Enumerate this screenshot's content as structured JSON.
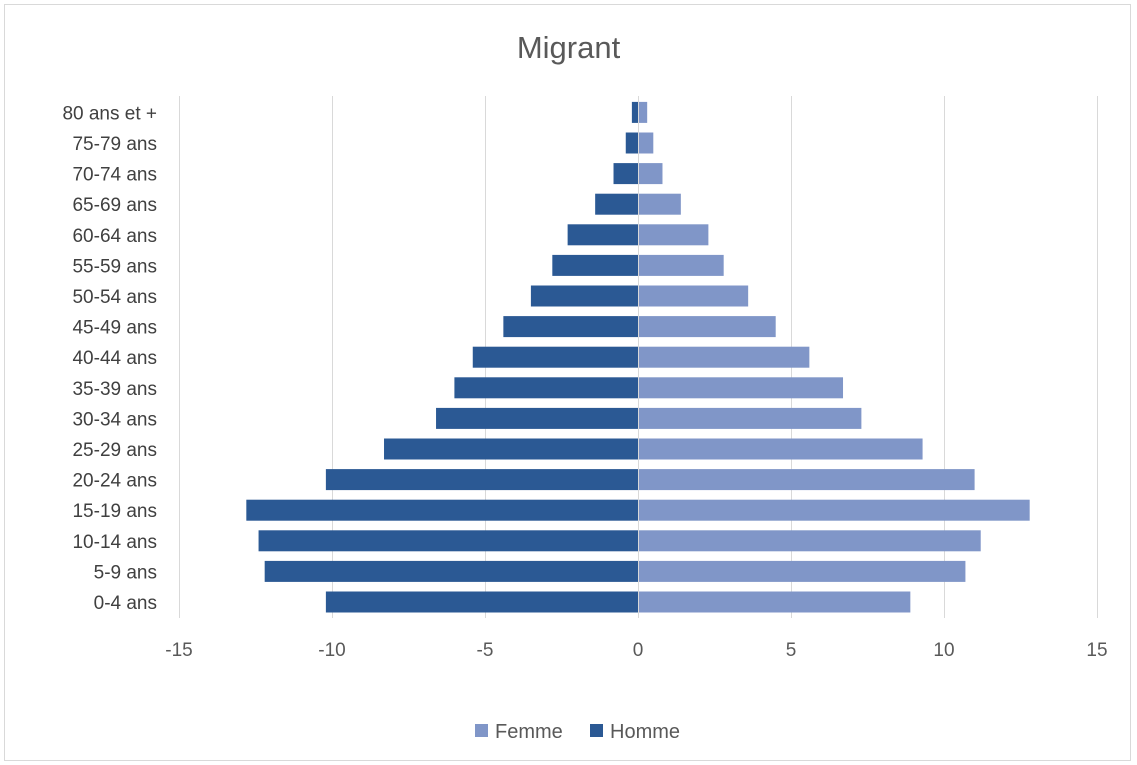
{
  "chart_data": {
    "type": "bar",
    "orientation": "horizontal",
    "title": "Migrant",
    "categories": [
      "0-4 ans",
      "5-9 ans",
      "10-14 ans",
      "15-19 ans",
      "20-24 ans",
      "25-29 ans",
      "30-34 ans",
      "35-39 ans",
      "40-44 ans",
      "45-49 ans",
      "50-54 ans",
      "55-59 ans",
      "60-64 ans",
      "65-69 ans",
      "70-74 ans",
      "75-79 ans",
      "80 ans et +"
    ],
    "series": [
      {
        "name": "Femme",
        "color": "#8096c8",
        "values": [
          8.9,
          10.7,
          11.2,
          12.8,
          11.0,
          9.3,
          7.3,
          6.7,
          5.6,
          4.5,
          3.6,
          2.8,
          2.3,
          1.4,
          0.8,
          0.5,
          0.3
        ]
      },
      {
        "name": "Homme",
        "color": "#2b5994",
        "values": [
          -10.2,
          -12.2,
          -12.4,
          -12.8,
          -10.2,
          -8.3,
          -6.6,
          -6.0,
          -5.4,
          -4.4,
          -3.5,
          -2.8,
          -2.3,
          -1.4,
          -0.8,
          -0.4,
          -0.2
        ]
      }
    ],
    "xlim": [
      -15,
      15
    ],
    "xticks": [
      -15,
      -10,
      -5,
      0,
      5,
      10,
      15
    ],
    "xtick_labels": [
      "-15",
      "-10",
      "-5",
      "0",
      "5",
      "10",
      "15"
    ],
    "grid": "vertical",
    "legend": "bottom"
  }
}
